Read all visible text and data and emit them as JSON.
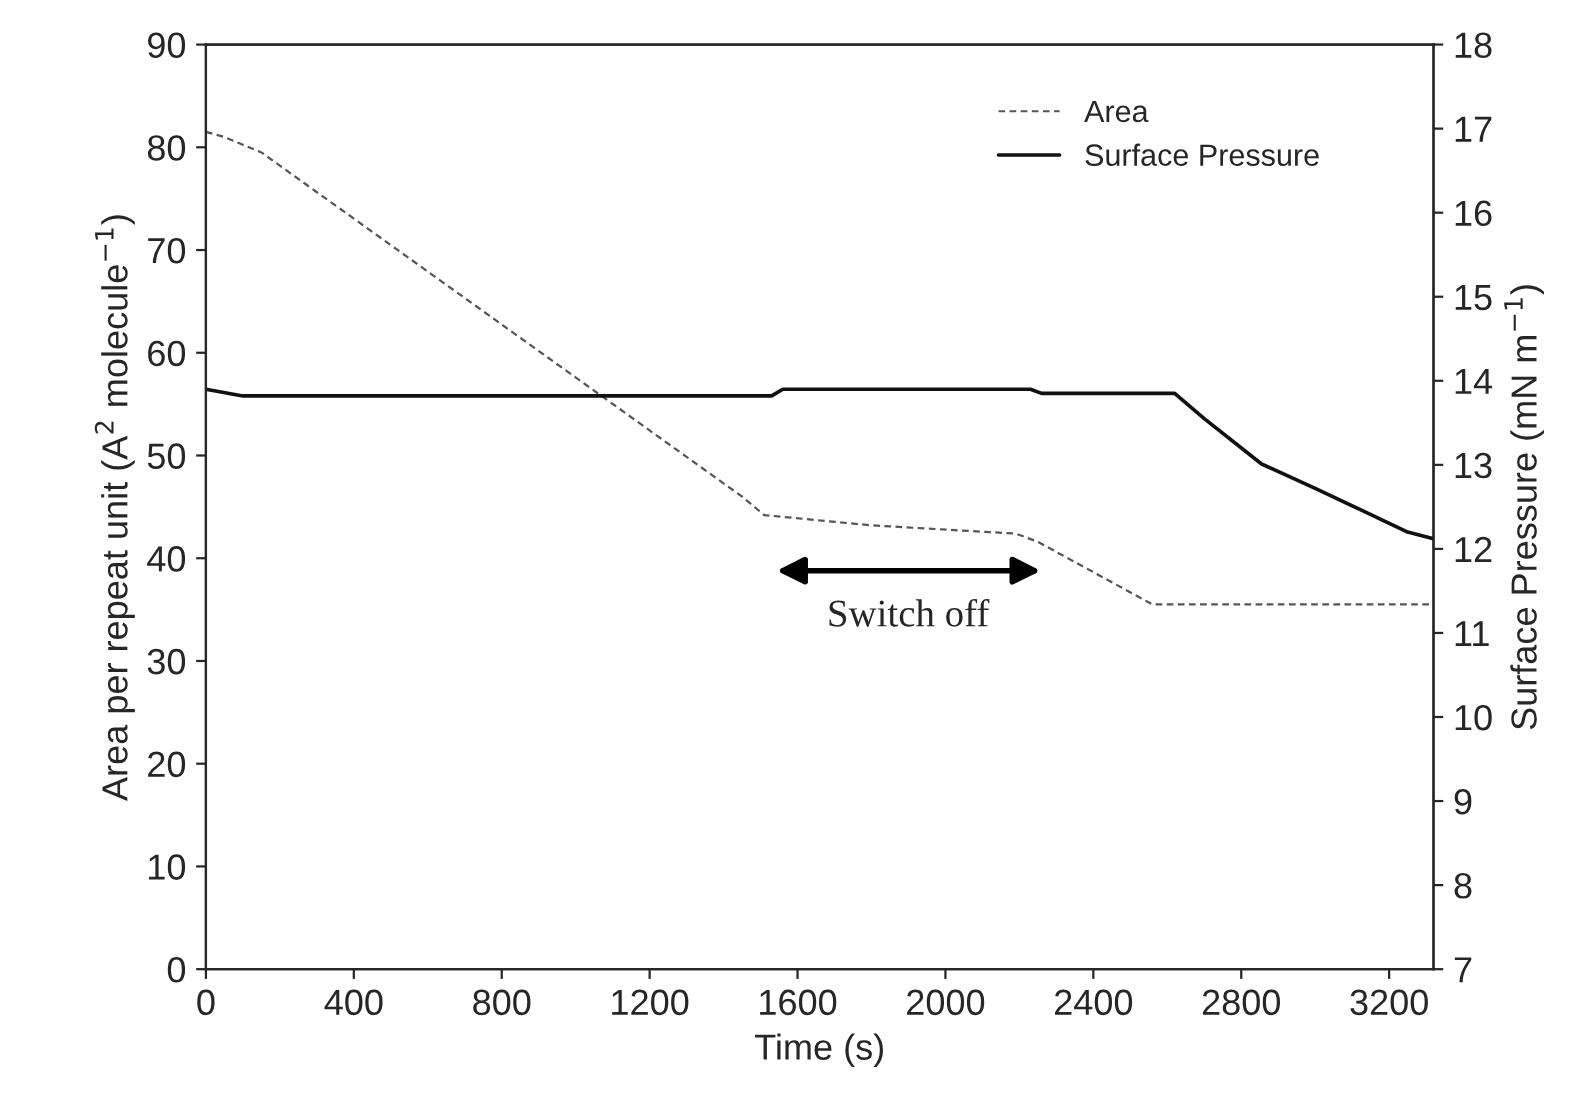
{
  "chart_data": {
    "type": "line",
    "xlabel": "Time (s)",
    "ylabel": "Area per repeat unit (A$^{2}$ molecule$^{−1}$)",
    "y2label": "Surface Pressure (mN m$^{−1}$)",
    "xlim": [
      0,
      3320
    ],
    "xticks": [
      0,
      400,
      800,
      1200,
      1600,
      2000,
      2400,
      2800,
      3200
    ],
    "ylim": [
      0,
      90
    ],
    "yticks": [
      0,
      10,
      20,
      30,
      40,
      50,
      60,
      70,
      80,
      90
    ],
    "y2lim": [
      7,
      18
    ],
    "y2ticks": [
      7,
      8,
      9,
      10,
      11,
      12,
      13,
      14,
      15,
      16,
      17,
      18
    ],
    "legend": "top right",
    "grid": false,
    "series": [
      {
        "name": "Area",
        "color": "#555555",
        "line_style": "dashed",
        "x": [
          0,
          50,
          150,
          1450,
          1510,
          1800,
          2190,
          2250,
          2560,
          3320
        ],
        "values": [
          81.5,
          81,
          79.5,
          46,
          44.2,
          43.2,
          42.4,
          41.6,
          35.5,
          35.5
        ]
      },
      {
        "name": "Surface Pressure",
        "color": "#111111",
        "line_style": "solid",
        "axis": "y2",
        "x": [
          0,
          100,
          1530,
          1560,
          2230,
          2260,
          2620,
          2700,
          2855,
          3000,
          3125,
          3250,
          3320
        ],
        "values": [
          13.9,
          13.82,
          13.82,
          13.9,
          13.9,
          13.85,
          13.85,
          13.55,
          13.01,
          12.72,
          12.46,
          12.2,
          12.12
        ]
      }
    ],
    "annotations": [
      "Switch off"
    ]
  }
}
